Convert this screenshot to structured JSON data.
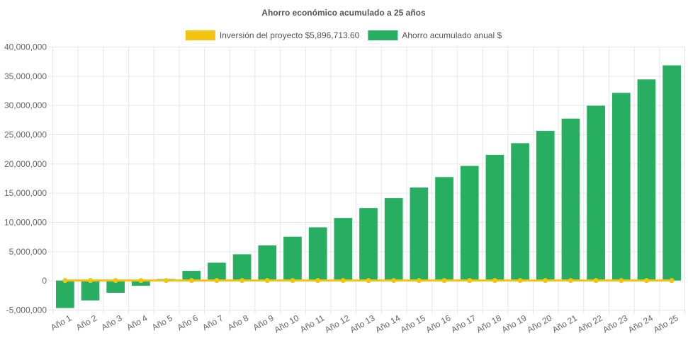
{
  "chart_data": {
    "type": "bar",
    "title": "Ahorro económico acumulado a 25 años",
    "xlabel": "",
    "ylabel": "",
    "ylim": [
      -5000000,
      40000000
    ],
    "y_ticks": [
      -5000000,
      0,
      5000000,
      10000000,
      15000000,
      20000000,
      25000000,
      30000000,
      35000000,
      40000000
    ],
    "y_tick_labels": [
      "-5,000,000",
      "0",
      "5,000,000",
      "10,000,000",
      "15,000,000",
      "20,000,000",
      "25,000,000",
      "30,000,000",
      "35,000,000",
      "40,000,000"
    ],
    "grid": true,
    "legend_position": "top",
    "categories": [
      "Año 1",
      "Año 2",
      "Año 3",
      "Año 4",
      "Año 5",
      "Año 6",
      "Año 7",
      "Año 8",
      "Año 9",
      "Año 10",
      "Año 11",
      "Año 12",
      "Año 13",
      "Año 14",
      "Año 15",
      "Año 16",
      "Año 17",
      "Año 18",
      "Año 19",
      "Año 20",
      "Año 21",
      "Año 22",
      "Año 23",
      "Año 24",
      "Año 25"
    ],
    "series": [
      {
        "name": "Inversión del proyecto $5,896,713.60",
        "type": "line",
        "color": "#f2c40f",
        "values": [
          0,
          0,
          0,
          0,
          0,
          0,
          0,
          0,
          0,
          0,
          0,
          0,
          0,
          0,
          0,
          0,
          0,
          0,
          0,
          0,
          0,
          0,
          0,
          0,
          0
        ]
      },
      {
        "name": "Ahorro acumulado anual $",
        "type": "bar",
        "color": "#27ae60",
        "values": [
          -4700000,
          -3400000,
          -2100000,
          -900000,
          250000,
          1650000,
          3050000,
          4500000,
          6000000,
          7500000,
          9100000,
          10700000,
          12400000,
          14100000,
          15900000,
          17700000,
          19600000,
          21500000,
          23500000,
          25600000,
          27700000,
          29900000,
          32100000,
          34400000,
          36800000
        ]
      }
    ]
  }
}
